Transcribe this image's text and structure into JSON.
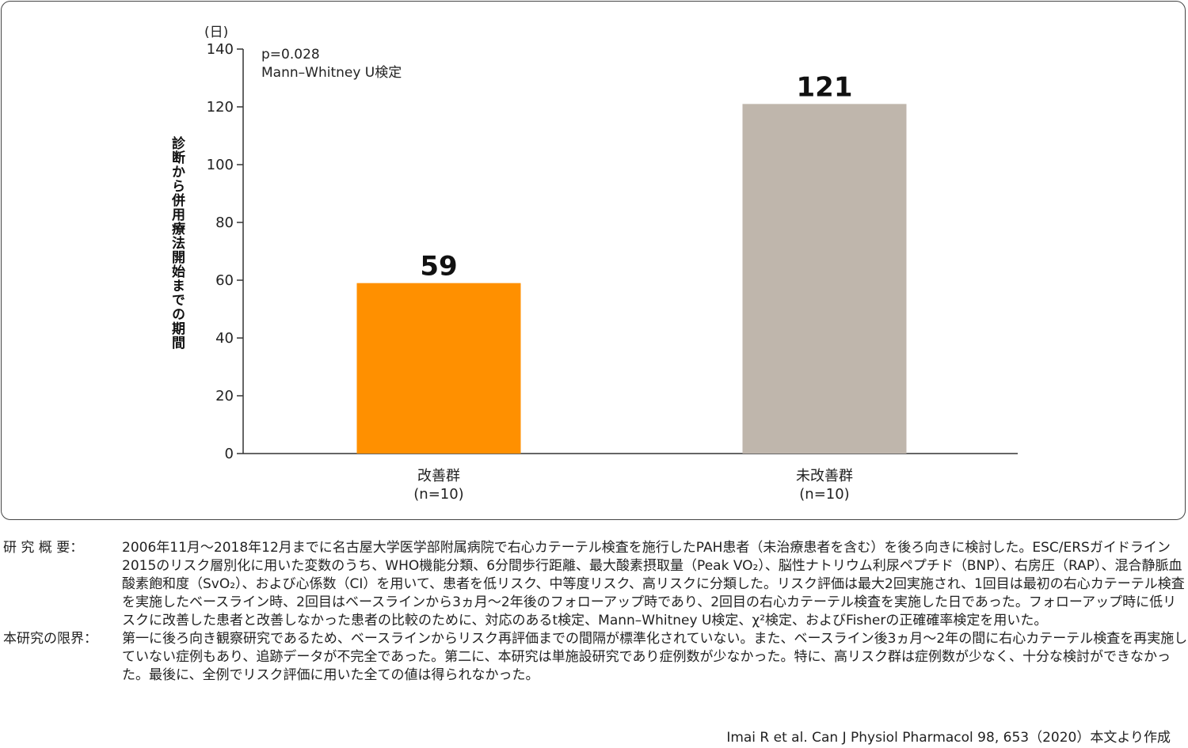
{
  "chart_data": {
    "type": "bar",
    "unit_label": "(日)",
    "ylabel": "診断から併用療法開始までの期間",
    "ylim": [
      0,
      140
    ],
    "yticks": [
      0,
      20,
      40,
      60,
      80,
      100,
      120,
      140
    ],
    "categories": [
      {
        "name": "改善群",
        "sub": "(n=10)",
        "value": 59,
        "color": "#ff9000"
      },
      {
        "name": "未改善群",
        "sub": "(n=10)",
        "value": 121,
        "color": "#bfb6ac"
      }
    ],
    "stats_line1": "p=0.028",
    "stats_line2": "Mann–Whitney U検定",
    "grid": false
  },
  "notes": {
    "overview_label": "研 究 概 要：",
    "overview_text": "2006年11月〜2018年12月までに名古屋大学医学部附属病院で右心カテーテル検査を施行したPAH患者（未治療患者を含む）を後ろ向きに検討した。ESC/ERSガイドライン2015のリスク層別化に用いた変数のうち、WHO機能分類、6分間歩行距離、最大酸素摂取量（Peak VO₂）、脳性ナトリウム利尿ペプチド（BNP）、右房圧（RAP）、混合静脈血酸素飽和度（SvO₂）、および心係数（CI）を用いて、患者を低リスク、中等度リスク、高リスクに分類した。リスク評価は最大2回実施され、1回目は最初の右心カテーテル検査を実施したベースライン時、2回目はベースラインから3ヵ月〜2年後のフォローアップ時であり、2回目の右心カテーテル検査を実施した日であった。フォローアップ時に低リスクに改善した患者と改善しなかった患者の比較のために、対応のあるt検定、Mann–Whitney U検定、χ²検定、およびFisherの正確確率検定を用いた。",
    "limits_label": "本研究の限界：",
    "limits_text": "第一に後ろ向き観察研究であるため、ベースラインからリスク再評価までの間隔が標準化されていない。また、ベースライン後3ヵ月〜2年の間に右心カテーテル検査を再実施していない症例もあり、追跡データが不完全であった。第二に、本研究は単施設研究であり症例数が少なかった。特に、高リスク群は症例数が少なく、十分な検討ができなかった。最後に、全例でリスク評価に用いた全ての値は得られなかった。",
    "citation": "Imai R et al. Can J Physiol Pharmacol 98, 653（2020）本文より作成"
  }
}
